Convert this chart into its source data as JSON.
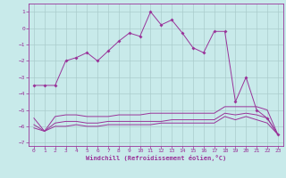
{
  "xlabel": "Windchill (Refroidissement éolien,°C)",
  "background_color": "#c8eaea",
  "grid_color": "#aacccc",
  "line_color": "#993399",
  "xlim": [
    -0.5,
    23.5
  ],
  "ylim": [
    -7.2,
    1.5
  ],
  "xticks": [
    0,
    1,
    2,
    3,
    4,
    5,
    6,
    7,
    8,
    9,
    10,
    11,
    12,
    13,
    14,
    15,
    16,
    17,
    18,
    19,
    20,
    21,
    22,
    23
  ],
  "yticks": [
    1,
    0,
    -1,
    -2,
    -3,
    -4,
    -5,
    -6,
    -7
  ],
  "line1_y": [
    -3.5,
    -3.5,
    -3.5,
    -2.0,
    -1.8,
    -1.5,
    -2.0,
    -1.4,
    -0.8,
    -0.3,
    -0.5,
    1.0,
    0.2,
    0.5,
    -0.3,
    -1.2,
    -1.5,
    -0.2,
    -0.2,
    -4.5,
    -3.0,
    -5.0,
    -5.5,
    -6.5
  ],
  "line2_y": [
    -5.5,
    -6.3,
    -5.4,
    -5.3,
    -5.3,
    -5.4,
    -5.4,
    -5.4,
    -5.3,
    -5.3,
    -5.3,
    -5.2,
    -5.2,
    -5.2,
    -5.2,
    -5.2,
    -5.2,
    -5.2,
    -4.8,
    -4.8,
    -4.8,
    -4.8,
    -5.0,
    -6.5
  ],
  "line3_y": [
    -5.9,
    -6.3,
    -5.8,
    -5.7,
    -5.7,
    -5.8,
    -5.8,
    -5.7,
    -5.7,
    -5.7,
    -5.7,
    -5.7,
    -5.7,
    -5.6,
    -5.6,
    -5.6,
    -5.6,
    -5.6,
    -5.2,
    -5.3,
    -5.2,
    -5.3,
    -5.5,
    -6.5
  ],
  "line4_y": [
    -6.1,
    -6.3,
    -6.0,
    -6.0,
    -5.9,
    -6.0,
    -6.0,
    -5.9,
    -5.9,
    -5.9,
    -5.9,
    -5.9,
    -5.8,
    -5.8,
    -5.8,
    -5.8,
    -5.8,
    -5.8,
    -5.4,
    -5.6,
    -5.4,
    -5.6,
    -5.8,
    -6.5
  ]
}
